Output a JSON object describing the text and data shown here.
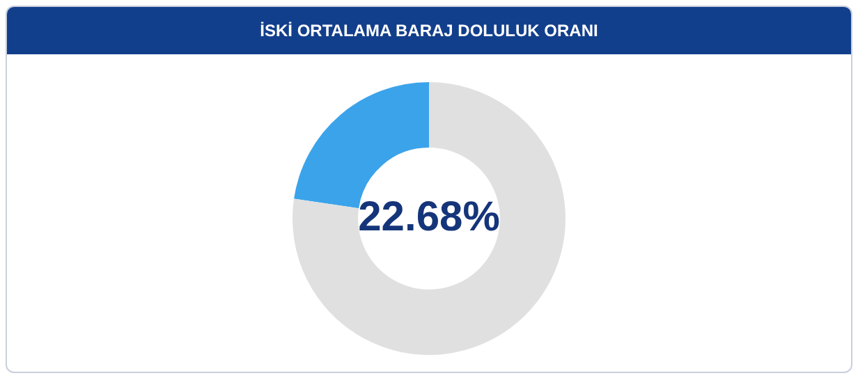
{
  "chart_data": {
    "type": "donut",
    "title": "İSKİ ORTALAMA BARAJ DOLULUK ORANI",
    "categories": [
      null,
      null
    ],
    "values": [
      22.68,
      77.32
    ],
    "colors": [
      "#3ba3ea",
      "#e0e0e0"
    ],
    "value_labels": [
      "22.68%",
      null
    ],
    "legend": false
  }
}
